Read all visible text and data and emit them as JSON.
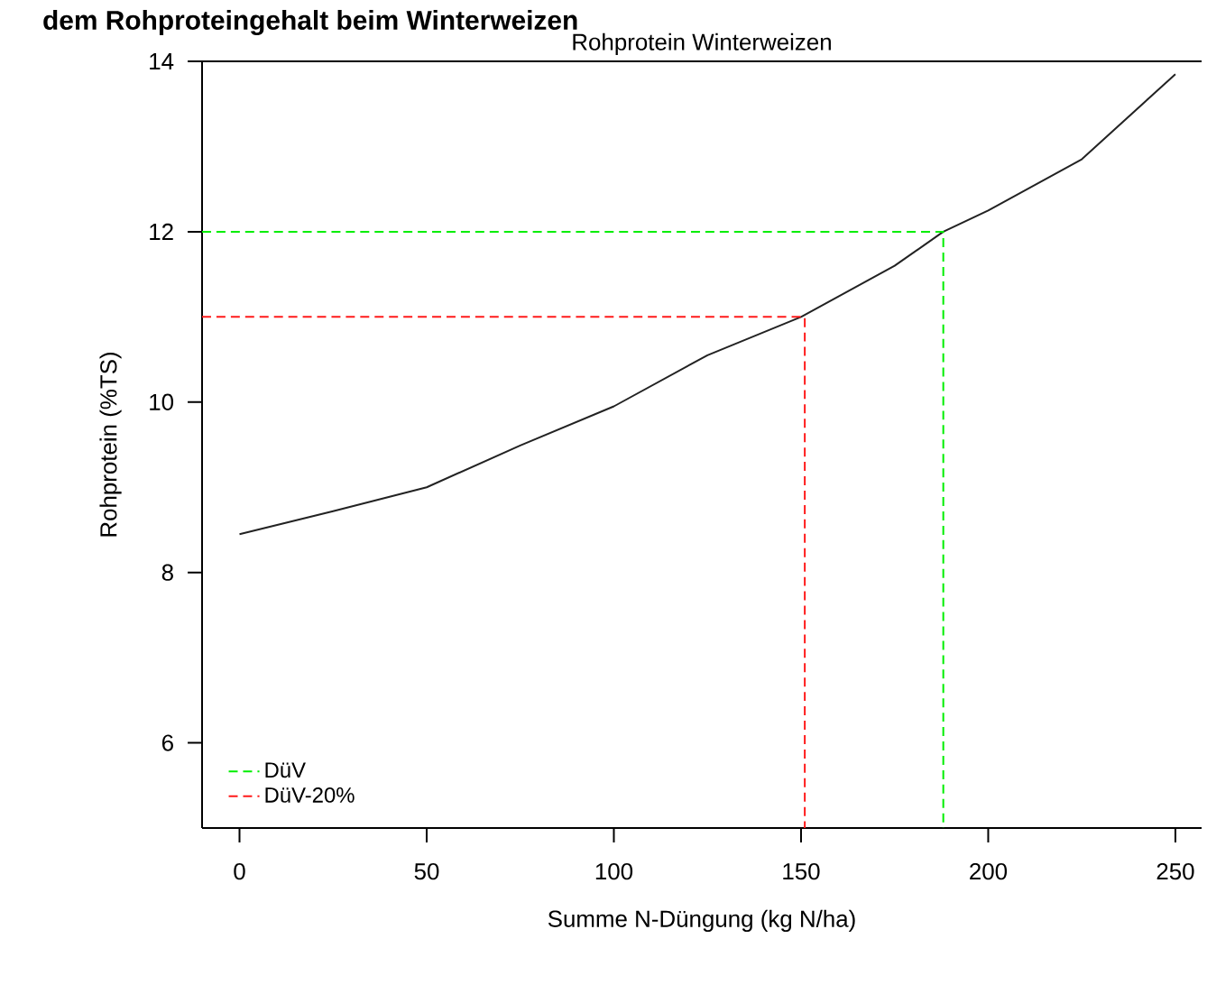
{
  "chart_data": {
    "type": "line",
    "title": "Rohprotein Winterweizen",
    "xlabel": "Summe N-Düngung (kg N/ha)",
    "ylabel": "Rohprotein (%TS)",
    "annotations": [
      "dem Rohproteingehalt beim Winterweizen"
    ],
    "xlim": [
      -10,
      257
    ],
    "ylim": [
      5,
      14
    ],
    "xticks": [
      0,
      50,
      100,
      150,
      200,
      250
    ],
    "yticks": [
      6,
      8,
      10,
      12,
      14
    ],
    "legend": "bottom left",
    "grid": false,
    "series": [
      {
        "color": "#222222",
        "line_style": "solid",
        "x": [
          0,
          25,
          50,
          75,
          100,
          125,
          150,
          175,
          188,
          200,
          225,
          250
        ],
        "values": [
          8.45,
          8.72,
          9.0,
          9.49,
          9.95,
          10.55,
          11.0,
          11.6,
          12.0,
          12.25,
          12.85,
          13.85
        ]
      },
      {
        "name": "DüV",
        "color": "#00ee00",
        "line_style": "dashed",
        "x": [
          -10,
          188,
          188
        ],
        "values": [
          12,
          12,
          5
        ]
      },
      {
        "name": "DüV-20%",
        "color": "#ff1a1a",
        "line_style": "dashed",
        "x": [
          -10,
          151,
          151
        ],
        "values": [
          11,
          11,
          5
        ]
      }
    ]
  }
}
